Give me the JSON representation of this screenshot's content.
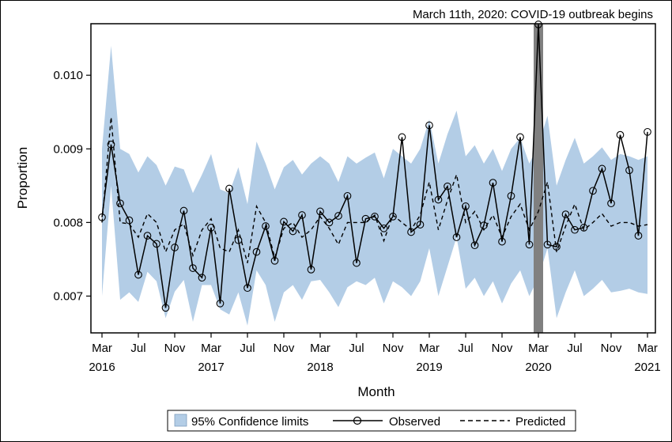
{
  "chart_data": {
    "type": "line",
    "annotation": "March 11th, 2020: COVID-19 outbreak begins",
    "xlabel": "Month",
    "ylabel": "Proportion",
    "ylim": [
      0.0065,
      0.0107
    ],
    "y_ticks": [
      {
        "value": 0.007,
        "label": "0.007"
      },
      {
        "value": 0.008,
        "label": "0.008"
      },
      {
        "value": 0.009,
        "label": "0.009"
      },
      {
        "value": 0.01,
        "label": "0.010"
      }
    ],
    "x_ticks": [
      {
        "index": 0,
        "label": "Mar",
        "year": "2016"
      },
      {
        "index": 4,
        "label": "Jul",
        "year": ""
      },
      {
        "index": 8,
        "label": "Nov",
        "year": ""
      },
      {
        "index": 12,
        "label": "Mar",
        "year": "2017"
      },
      {
        "index": 16,
        "label": "Jul",
        "year": ""
      },
      {
        "index": 20,
        "label": "Nov",
        "year": ""
      },
      {
        "index": 24,
        "label": "Mar",
        "year": "2018"
      },
      {
        "index": 28,
        "label": "Jul",
        "year": ""
      },
      {
        "index": 32,
        "label": "Nov",
        "year": ""
      },
      {
        "index": 36,
        "label": "Mar",
        "year": "2019"
      },
      {
        "index": 40,
        "label": "Jul",
        "year": ""
      },
      {
        "index": 44,
        "label": "Nov",
        "year": ""
      },
      {
        "index": 48,
        "label": "Mar",
        "year": "2020"
      },
      {
        "index": 52,
        "label": "Jul",
        "year": ""
      },
      {
        "index": 56,
        "label": "Nov",
        "year": ""
      },
      {
        "index": 60,
        "label": "Mar",
        "year": "2021"
      }
    ],
    "highlight_index": 48,
    "observed": [
      0.00807,
      0.00906,
      0.00826,
      0.00803,
      0.00729,
      0.00782,
      0.00771,
      0.00684,
      0.00766,
      0.00816,
      0.00738,
      0.00725,
      0.00793,
      0.0069,
      0.00846,
      0.00776,
      0.00711,
      0.0076,
      0.00795,
      0.00748,
      0.00801,
      0.00788,
      0.0081,
      0.00736,
      0.00815,
      0.008,
      0.00809,
      0.00836,
      0.00745,
      0.00805,
      0.00808,
      0.00792,
      0.00808,
      0.00916,
      0.00787,
      0.00797,
      0.00932,
      0.00831,
      0.00849,
      0.0078,
      0.00822,
      0.00769,
      0.00796,
      0.00854,
      0.00774,
      0.00836,
      0.00916,
      0.0077,
      0.01069,
      0.0077,
      0.00767,
      0.00811,
      0.0079,
      0.00793,
      0.00843,
      0.00873,
      0.00826,
      0.00919,
      0.00871,
      0.00782,
      0.00923
    ],
    "predicted": [
      0.008,
      0.00943,
      0.008,
      0.00798,
      0.0078,
      0.00812,
      0.008,
      0.0076,
      0.0079,
      0.00798,
      0.00755,
      0.0079,
      0.00805,
      0.00765,
      0.0076,
      0.0079,
      0.00745,
      0.00822,
      0.008,
      0.00752,
      0.00792,
      0.008,
      0.0078,
      0.0079,
      0.00808,
      0.00792,
      0.0077,
      0.008,
      0.008,
      0.008,
      0.0081,
      0.00775,
      0.0081,
      0.008,
      0.0079,
      0.0081,
      0.00855,
      0.0079,
      0.0083,
      0.00865,
      0.008,
      0.00815,
      0.0079,
      0.0081,
      0.0078,
      0.00808,
      0.00825,
      0.0079,
      0.00815,
      0.00855,
      0.0076,
      0.00795,
      0.00825,
      0.0079,
      0.008,
      0.00812,
      0.00795,
      0.008,
      0.008,
      0.00795,
      0.00797
    ],
    "upper": [
      0.009,
      0.0104,
      0.009,
      0.00893,
      0.00868,
      0.0089,
      0.00878,
      0.0085,
      0.00876,
      0.00872,
      0.0084,
      0.00865,
      0.00893,
      0.00845,
      0.0084,
      0.00875,
      0.00825,
      0.0091,
      0.0088,
      0.00845,
      0.00875,
      0.00885,
      0.00865,
      0.0088,
      0.0089,
      0.0088,
      0.00855,
      0.0089,
      0.0088,
      0.00888,
      0.00895,
      0.0086,
      0.009,
      0.0089,
      0.0088,
      0.009,
      0.0094,
      0.0088,
      0.0092,
      0.00952,
      0.0089,
      0.00905,
      0.0088,
      0.009,
      0.0087,
      0.009,
      0.00915,
      0.0088,
      0.00905,
      0.00945,
      0.0085,
      0.00885,
      0.00915,
      0.0088,
      0.0089,
      0.00902,
      0.00885,
      0.00893,
      0.0089,
      0.00885,
      0.0089
    ],
    "lower": [
      0.007,
      0.0085,
      0.00695,
      0.00705,
      0.00692,
      0.00733,
      0.0072,
      0.0067,
      0.00706,
      0.00722,
      0.00665,
      0.00715,
      0.00715,
      0.00682,
      0.00675,
      0.00705,
      0.0066,
      0.00735,
      0.00715,
      0.00665,
      0.00705,
      0.00715,
      0.00695,
      0.0072,
      0.00722,
      0.00705,
      0.00685,
      0.00712,
      0.0072,
      0.00715,
      0.00725,
      0.0069,
      0.0072,
      0.00712,
      0.007,
      0.0072,
      0.00765,
      0.007,
      0.0074,
      0.0078,
      0.0071,
      0.00725,
      0.007,
      0.0072,
      0.0069,
      0.00717,
      0.00735,
      0.007,
      0.00725,
      0.00765,
      0.0067,
      0.00705,
      0.00735,
      0.007,
      0.0071,
      0.00722,
      0.00705,
      0.00707,
      0.0071,
      0.00705,
      0.00703
    ],
    "legend": {
      "ci_label": "95% Confidence limits",
      "observed_label": "Observed",
      "predicted_label": "Predicted",
      "placement": "bottom-center"
    },
    "colors": {
      "ci_band": "#b3cde6",
      "highlight_bar": "#808080",
      "line": "#000000"
    }
  }
}
